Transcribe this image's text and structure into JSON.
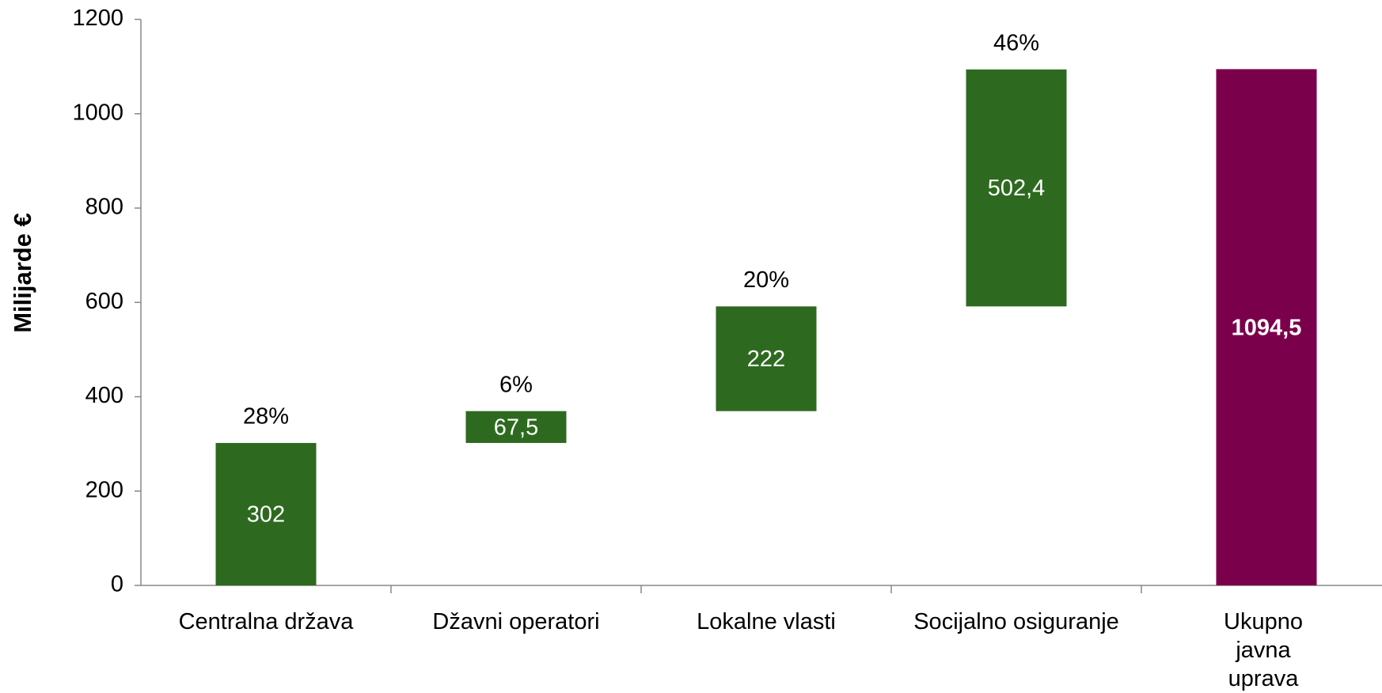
{
  "chart_data": {
    "type": "waterfall",
    "ylabel": "Milijarde €",
    "categories": [
      "Centralna država",
      "Džavni operatori",
      "Lokalne vlasti",
      "Socijalno osiguranje",
      "Ukupno javna\nuprava"
    ],
    "values": [
      302,
      67.5,
      222,
      502.4,
      1094.5
    ],
    "value_labels": [
      "302",
      "67,5",
      "222",
      "502,4",
      "1094,5"
    ],
    "percent_labels": [
      "28%",
      "6%",
      "20%",
      "46%",
      null
    ],
    "is_total": [
      false,
      false,
      false,
      false,
      true
    ],
    "color": "#2d6a1f",
    "total_color": "#7b004b",
    "ylim": [
      0,
      1200
    ],
    "yticks": [
      0,
      200,
      400,
      600,
      800,
      1000,
      1200
    ]
  }
}
